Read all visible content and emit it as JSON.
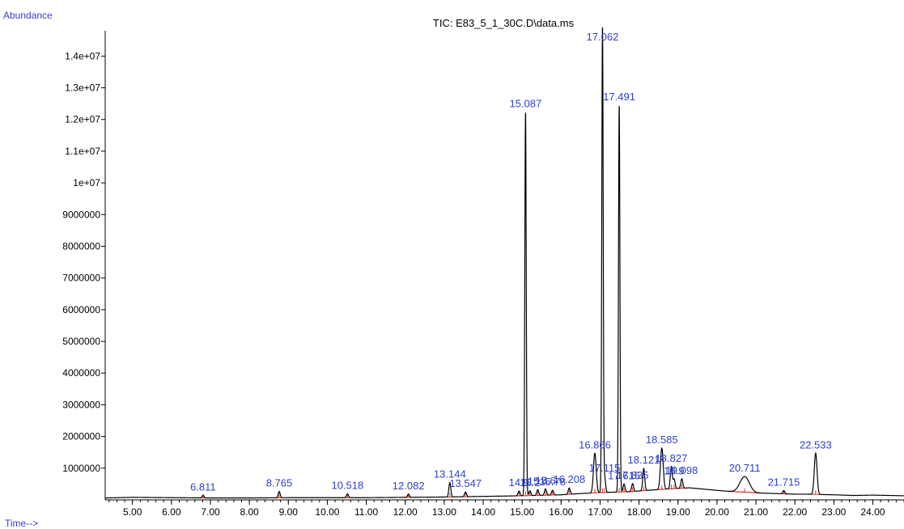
{
  "chart_data": {
    "type": "line",
    "title": "TIC: E83_5_1_30C.D\\data.ms",
    "ylabel": "Abundance",
    "xlabel": "Time-->",
    "xlim": [
      4.3,
      24.8
    ],
    "ylim": [
      0,
      14800000
    ],
    "x_ticks": [
      5,
      6,
      7,
      8,
      9,
      10,
      11,
      12,
      13,
      14,
      15,
      16,
      17,
      18,
      19,
      20,
      21,
      22,
      23,
      24
    ],
    "x_tick_labels": [
      "5.00",
      "6.00",
      "7.00",
      "8.00",
      "9.00",
      "10.00",
      "11.00",
      "12.00",
      "13.00",
      "14.00",
      "15.00",
      "16.00",
      "17.00",
      "18.00",
      "19.00",
      "20.00",
      "21.00",
      "22.00",
      "23.00",
      "24.00"
    ],
    "y_ticks": [
      1000000,
      2000000,
      3000000,
      4000000,
      5000000,
      6000000,
      7000000,
      8000000,
      9000000,
      10000000,
      11000000,
      12000000,
      13000000,
      14000000
    ],
    "y_tick_labels": [
      "1000000",
      "2000000",
      "3000000",
      "4000000",
      "5000000",
      "6000000",
      "7000000",
      "8000000",
      "9000000",
      "1e+07",
      "1.1e+07",
      "1.2e+07",
      "1.3e+07",
      "1.4e+07"
    ],
    "baseline": [
      [
        4.3,
        60000
      ],
      [
        5,
        80000
      ],
      [
        6,
        70000
      ],
      [
        7,
        60000
      ],
      [
        8,
        60000
      ],
      [
        9,
        70000
      ],
      [
        10,
        70000
      ],
      [
        11,
        70000
      ],
      [
        12,
        80000
      ],
      [
        13,
        90000
      ],
      [
        14,
        110000
      ],
      [
        15,
        130000
      ],
      [
        16,
        160000
      ],
      [
        16.5,
        200000
      ],
      [
        17,
        230000
      ],
      [
        17.8,
        260000
      ],
      [
        18.2,
        300000
      ],
      [
        18.8,
        350000
      ],
      [
        19.3,
        380000
      ],
      [
        20,
        300000
      ],
      [
        20.5,
        250000
      ],
      [
        21,
        220000
      ],
      [
        21.5,
        200000
      ],
      [
        22,
        180000
      ],
      [
        22.3,
        180000
      ],
      [
        23,
        160000
      ],
      [
        23.5,
        140000
      ],
      [
        24,
        150000
      ],
      [
        24.8,
        130000
      ]
    ],
    "peaks": [
      {
        "rt": 6.811,
        "height": 80000,
        "label": "6.811"
      },
      {
        "rt": 8.765,
        "height": 200000,
        "label": "8.765"
      },
      {
        "rt": 10.518,
        "height": 120000,
        "label": "10.518"
      },
      {
        "rt": 12.082,
        "height": 100000,
        "label": "12.082"
      },
      {
        "rt": 13.144,
        "height": 450000,
        "label": "13.144"
      },
      {
        "rt": 13.547,
        "height": 150000,
        "label": "13.547"
      },
      {
        "rt": 14.92,
        "height": 150000,
        "label": "14.9"
      },
      {
        "rt": 15.087,
        "height": 12100000,
        "label": "15.087"
      },
      {
        "rt": 15.2,
        "height": 150000,
        "label": "15.2"
      },
      {
        "rt": 15.4,
        "height": 180000,
        "label": "15.4"
      },
      {
        "rt": 15.6,
        "height": 200000,
        "label": "15.6"
      },
      {
        "rt": 15.78,
        "height": 150000,
        "label": "15.78"
      },
      {
        "rt": 16.208,
        "height": 200000,
        "label": "16.208"
      },
      {
        "rt": 16.866,
        "height": 1250000,
        "label": "16.866"
      },
      {
        "rt": 17.062,
        "height": 14700000,
        "label": "17.062"
      },
      {
        "rt": 17.115,
        "height": 500000,
        "label": "17.115"
      },
      {
        "rt": 17.491,
        "height": 12200000,
        "label": "17.491"
      },
      {
        "rt": 17.615,
        "height": 250000,
        "label": "17.615"
      },
      {
        "rt": 17.835,
        "height": 250000,
        "label": "17.835"
      },
      {
        "rt": 18.121,
        "height": 700000,
        "label": "18.121"
      },
      {
        "rt": 18.585,
        "height": 1300000,
        "label": "18.585"
      },
      {
        "rt": 18.827,
        "height": 700000,
        "label": "18.827"
      },
      {
        "rt": 18.9,
        "height": 300000,
        "label": "18.9"
      },
      {
        "rt": 19.098,
        "height": 300000,
        "label": "19.098"
      },
      {
        "rt": 20.711,
        "height": 500000,
        "label": "20.711"
      },
      {
        "rt": 21.715,
        "height": 100000,
        "label": "21.715"
      },
      {
        "rt": 22.533,
        "height": 1300000,
        "label": "22.533"
      }
    ]
  }
}
